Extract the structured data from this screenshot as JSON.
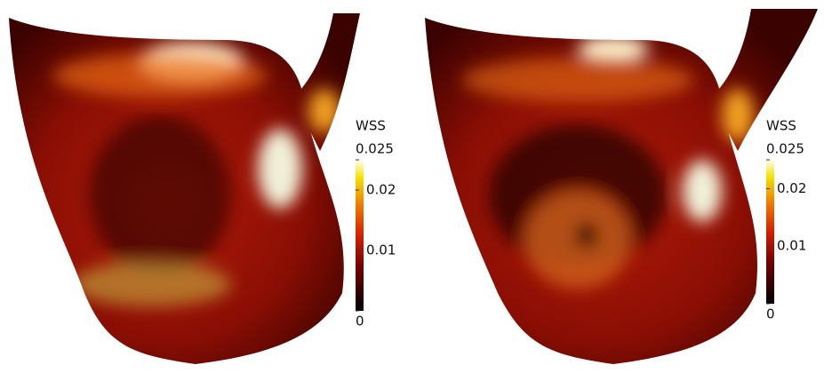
{
  "panels": [
    {
      "colorbar": {
        "title": "WSS",
        "lim": [
          0,
          0.025
        ],
        "ticks": [
          0,
          0.01,
          0.02,
          0.025
        ]
      }
    },
    {
      "colorbar": {
        "title": "WSS",
        "lim": [
          0,
          0.025
        ],
        "ticks": [
          0,
          0.01,
          0.02,
          0.025
        ]
      }
    }
  ]
}
